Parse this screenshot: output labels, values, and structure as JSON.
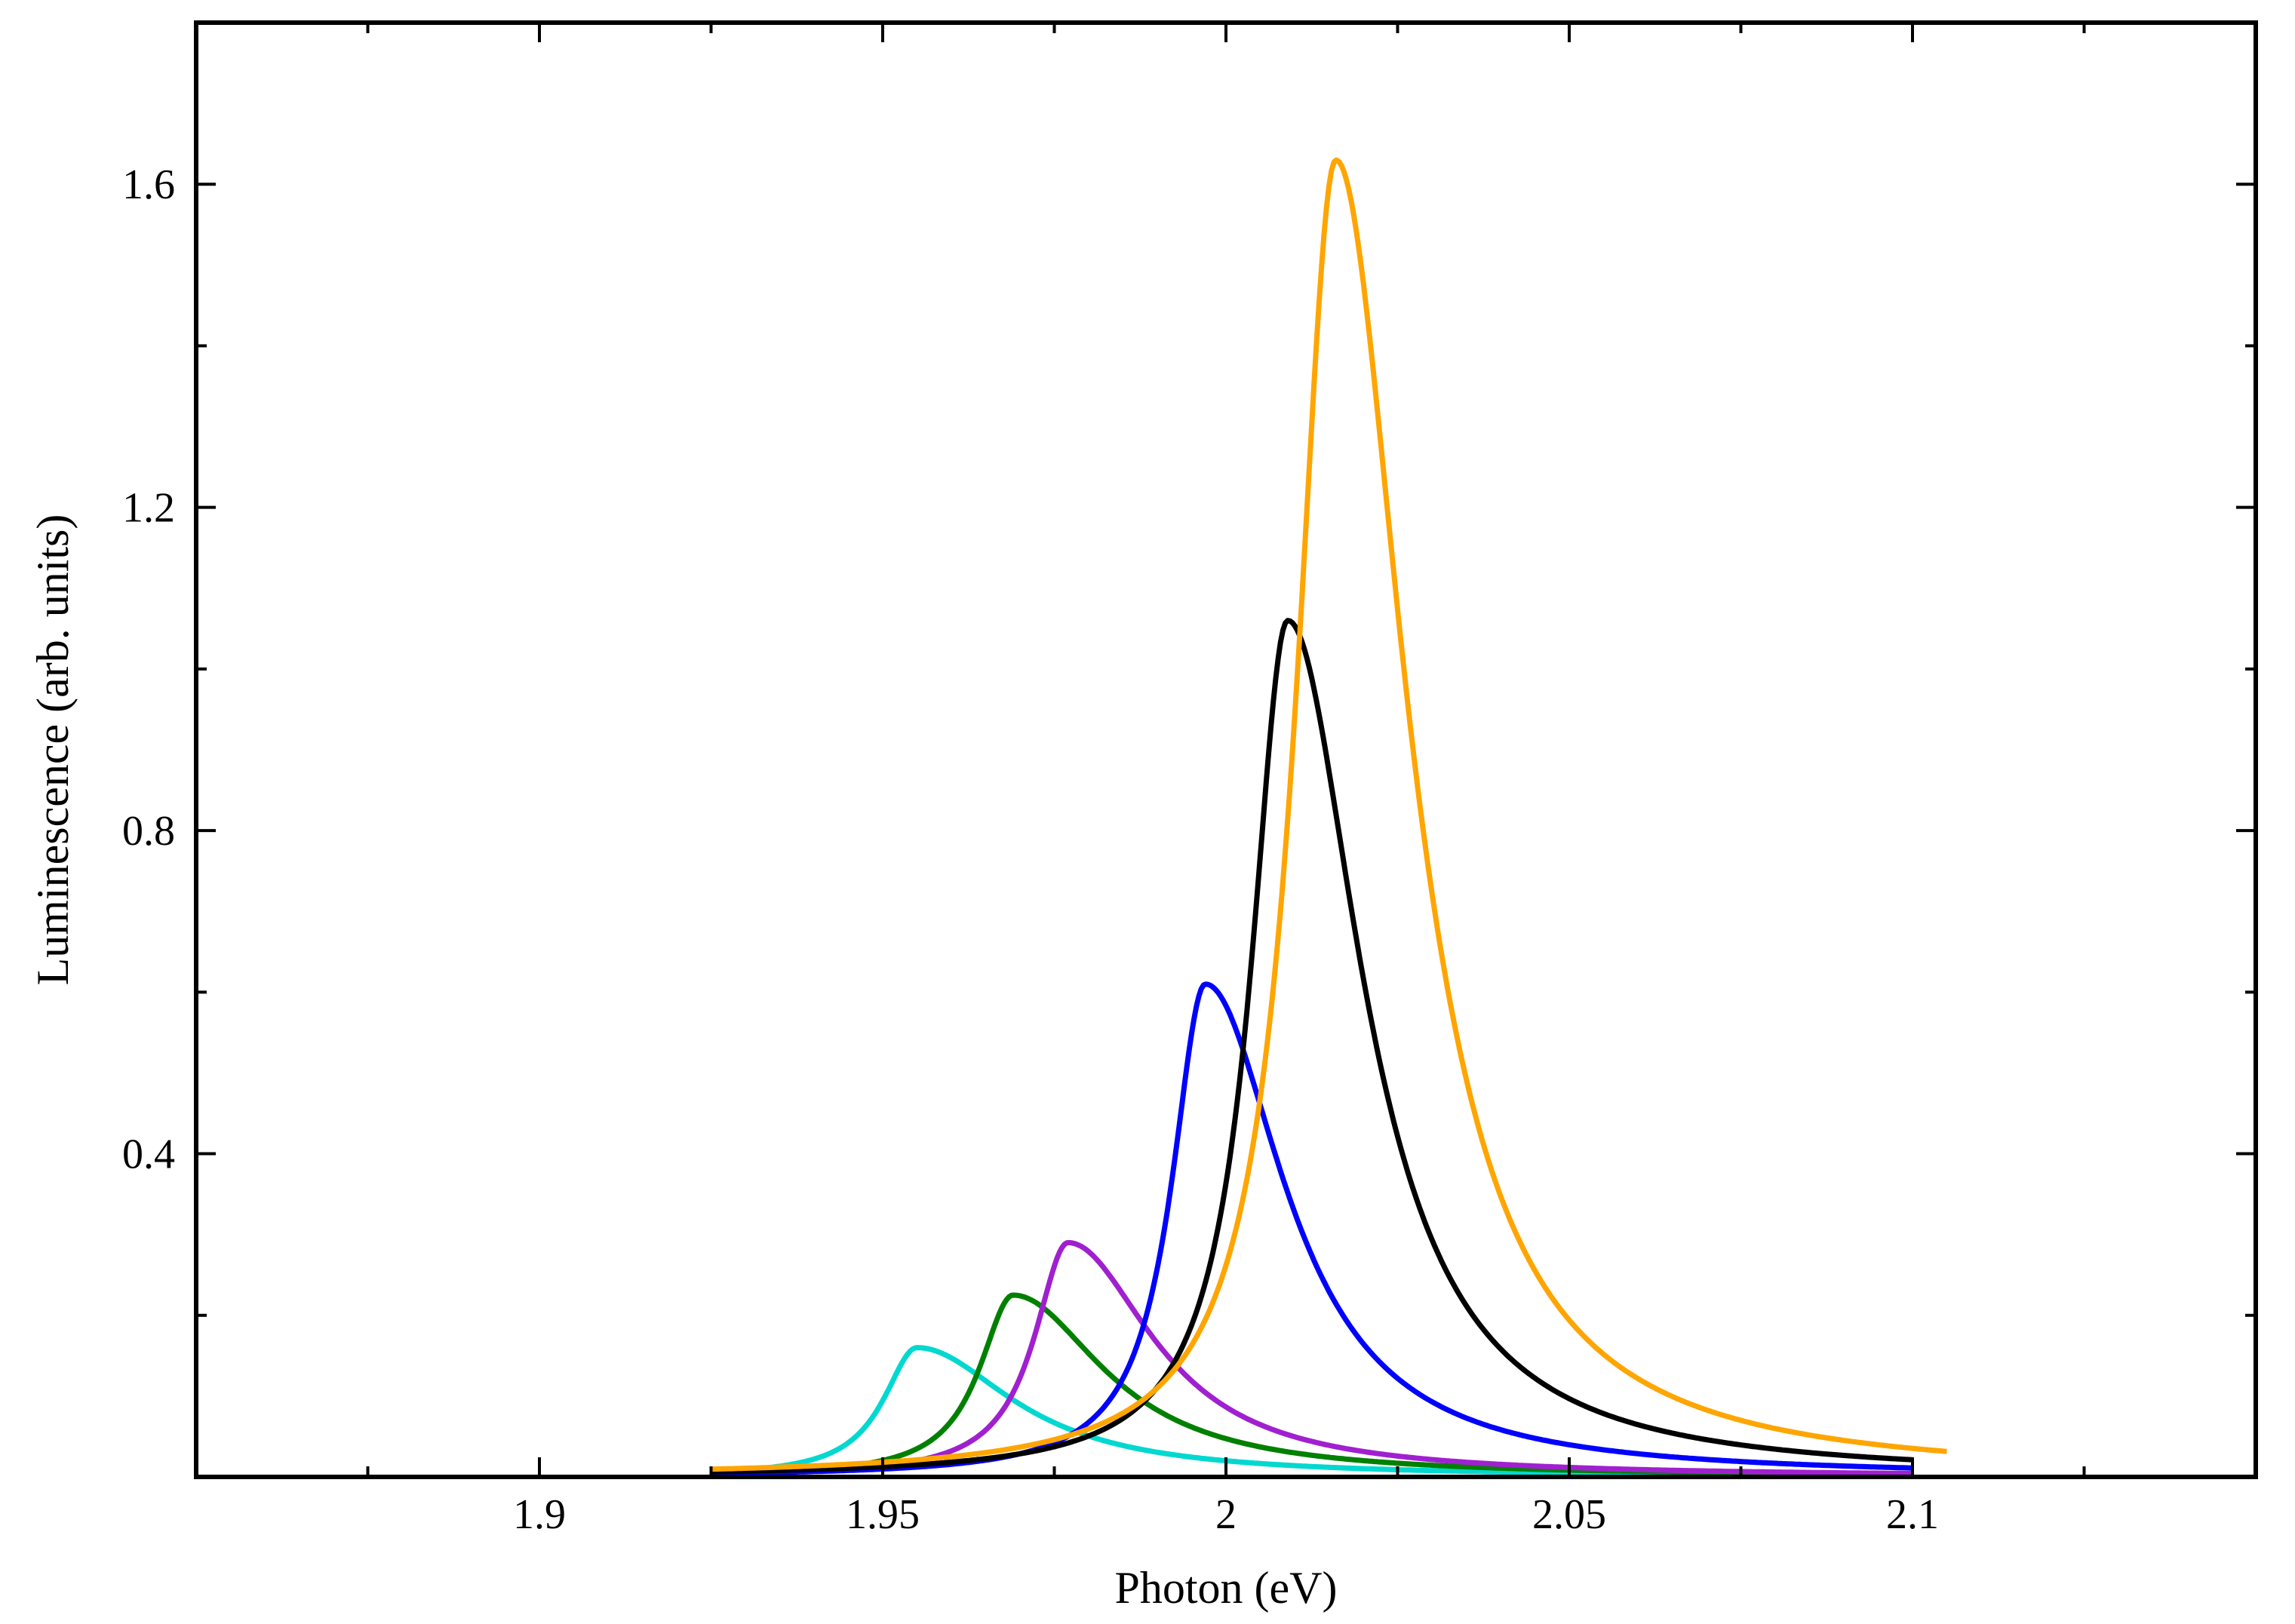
{
  "chart_data": {
    "type": "line",
    "title": "",
    "xlabel": "Photon (eV)",
    "ylabel": "Luminescence (arb. units)",
    "xlim": [
      1.85,
      2.15
    ],
    "ylim": [
      0,
      1.8
    ],
    "x_ticks_major": [
      1.9,
      1.95,
      2.0,
      2.05,
      2.1
    ],
    "x_tick_labels": [
      "1.9",
      "1.95",
      "2",
      "2.05",
      "2.1"
    ],
    "x_ticks_minor": [
      1.875,
      1.925,
      1.975,
      2.025,
      2.075,
      2.125
    ],
    "y_ticks_major": [
      0.4,
      0.8,
      1.2,
      1.6
    ],
    "y_tick_labels": [
      "0.4",
      "0.8",
      "1.2",
      "1.6"
    ],
    "y_ticks_minor": [
      0.2,
      0.6,
      1.0,
      1.4
    ],
    "grid": false,
    "legend": "none",
    "series": [
      {
        "color": "#00d8d0",
        "peak_x": 1.955,
        "peak_y": 0.16,
        "hwhm_low": 0.006,
        "hwhm_high": 0.017,
        "x_start": 1.925,
        "x_end": 2.1
      },
      {
        "color": "#008000",
        "peak_x": 1.969,
        "peak_y": 0.225,
        "hwhm_low": 0.006,
        "hwhm_high": 0.016,
        "x_start": 1.925,
        "x_end": 2.1
      },
      {
        "color": "#a020d0",
        "peak_x": 1.977,
        "peak_y": 0.29,
        "hwhm_low": 0.006,
        "hwhm_high": 0.015,
        "x_start": 1.925,
        "x_end": 2.1
      },
      {
        "color": "#0000ff",
        "peak_x": 1.997,
        "peak_y": 0.61,
        "hwhm_low": 0.006,
        "hwhm_high": 0.014,
        "x_start": 1.925,
        "x_end": 2.1
      },
      {
        "color": "#000000",
        "peak_x": 2.009,
        "peak_y": 1.06,
        "hwhm_low": 0.0065,
        "hwhm_high": 0.013,
        "x_start": 1.925,
        "x_end": 2.1
      },
      {
        "color": "#ffa500",
        "peak_x": 2.016,
        "peak_y": 1.63,
        "hwhm_low": 0.007,
        "hwhm_high": 0.0125,
        "x_start": 1.925,
        "x_end": 2.105
      }
    ]
  }
}
